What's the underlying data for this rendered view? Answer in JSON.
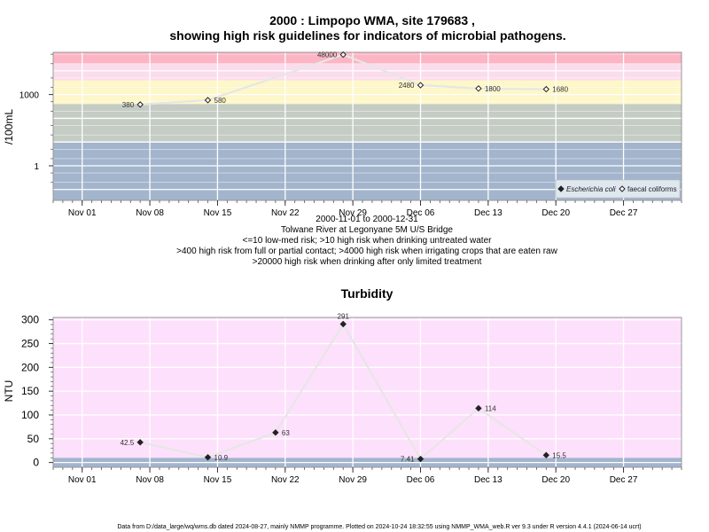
{
  "chart_data": [
    {
      "type": "line",
      "title": "2000 : Limpopo WMA, site 179683 ,",
      "subtitle": "showing high risk guidelines for indicators of microbial pathogens.",
      "ylabel": "/100mL",
      "yscale": "log",
      "ytick_labels": [
        "1",
        "1000"
      ],
      "xtick_labels": [
        "Nov 01",
        "Nov 08",
        "Nov 15",
        "Nov 22",
        "Nov 29",
        "Dec 06",
        "Dec 13",
        "Dec 20",
        "Dec 27"
      ],
      "xtick_dates": [
        "2000-11-01",
        "2000-11-08",
        "2000-11-15",
        "2000-11-22",
        "2000-11-29",
        "2000-12-06",
        "2000-12-13",
        "2000-12-20",
        "2000-12-27"
      ],
      "xlim": [
        "2000-10-29",
        "2001-01-02"
      ],
      "ylim": [
        0.035,
        60000
      ],
      "grid": true,
      "legend_position": "bottom-right",
      "bands": [
        {
          "from": 0.035,
          "to": 10,
          "color": "#a3b4cd"
        },
        {
          "from": 10,
          "to": 400,
          "color": "#c4ccc4"
        },
        {
          "from": 400,
          "to": 4000,
          "color": "#fdf7c9"
        },
        {
          "from": 4000,
          "to": 20000,
          "color": "#fbdcec"
        },
        {
          "from": 20000,
          "to": 60000,
          "color": "#fbb5c4"
        }
      ],
      "series": [
        {
          "name": "Escherichia coli",
          "marker": "filled-diamond",
          "x": [],
          "y": []
        },
        {
          "name": "faecal coliforms",
          "marker": "open-diamond",
          "x": [
            "2000-11-07",
            "2000-11-14",
            "2000-11-28",
            "2000-12-06",
            "2000-12-12",
            "2000-12-19"
          ],
          "y": [
            380,
            580,
            48000,
            2480,
            1800,
            1680
          ],
          "labels": [
            "380",
            "580",
            "48000",
            "2480",
            "1800",
            "1680"
          ]
        }
      ],
      "caption_lines": [
        "2000-11-01 to 2000-12-31",
        "Tolwane River at Legonyane 5M U/S Bridge",
        "<=10 low-med risk; >10 high risk when drinking untreated water",
        ">400 high risk from full or partial contact; >4000 high risk when irrigating crops that are eaten raw",
        ">20000 high risk when drinking after only limited treatment"
      ]
    },
    {
      "type": "line",
      "title": "Turbidity",
      "ylabel": "NTU",
      "ytick_labels": [
        "0",
        "50",
        "100",
        "150",
        "200",
        "250",
        "300"
      ],
      "yticks": [
        0,
        50,
        100,
        150,
        200,
        250,
        300
      ],
      "xtick_labels": [
        "Nov 01",
        "Nov 08",
        "Nov 15",
        "Nov 22",
        "Nov 29",
        "Dec 06",
        "Dec 13",
        "Dec 20",
        "Dec 27"
      ],
      "xtick_dates": [
        "2000-11-01",
        "2000-11-08",
        "2000-11-15",
        "2000-11-22",
        "2000-11-29",
        "2000-12-06",
        "2000-12-13",
        "2000-12-20",
        "2000-12-27"
      ],
      "xlim": [
        "2000-10-29",
        "2001-01-02"
      ],
      "ylim": [
        -10,
        305
      ],
      "grid": true,
      "bands": [
        {
          "from": -10,
          "to": 10,
          "color": "#a3b4cd"
        },
        {
          "from": 10,
          "to": 305,
          "color": "#fde0fb"
        }
      ],
      "series": [
        {
          "x": [
            "2000-11-07",
            "2000-11-14",
            "2000-11-21",
            "2000-11-28",
            "2000-12-06",
            "2000-12-12",
            "2000-12-19"
          ],
          "y": [
            42.5,
            10.9,
            63,
            291,
            7.41,
            114,
            15.5
          ],
          "labels": [
            "42.5",
            "10.9",
            "63",
            "291",
            "7.41",
            "114",
            "15.5"
          ]
        }
      ]
    }
  ],
  "footer": "Data from D:/data_large/wq/wms.db dated 2024-08-27, mainly NMMP programme. Plotted on 2024-10-24 18:32:55 using NMMP_WMA_web.R ver 9.3 under R version 4.4.1 (2024-06-14 ucrt)"
}
